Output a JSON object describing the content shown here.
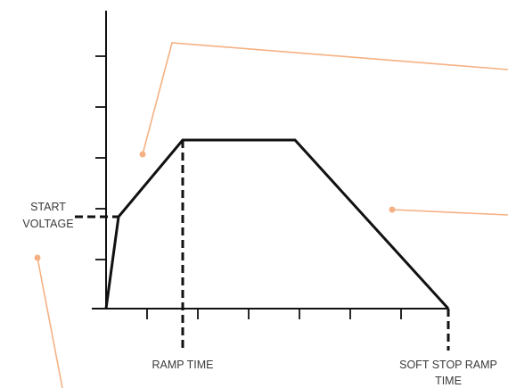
{
  "diagram": {
    "labels": {
      "start_voltage_line1": "START",
      "start_voltage_line2": "VOLTAGE",
      "ramp_time": "RAMP TIME",
      "soft_stop_line1": "SOFT STOP RAMP",
      "soft_stop_line2": "TIME"
    },
    "colors": {
      "axis": "#111111",
      "profile": "#111111",
      "callout": "#f5b183",
      "text": "#3a3a3a"
    },
    "callouts": [
      {
        "name": "callout-ramp-up",
        "target": "ramp-up segment"
      },
      {
        "name": "callout-soft-stop",
        "target": "soft stop segment"
      },
      {
        "name": "callout-start-voltage",
        "target": "start voltage"
      }
    ]
  }
}
